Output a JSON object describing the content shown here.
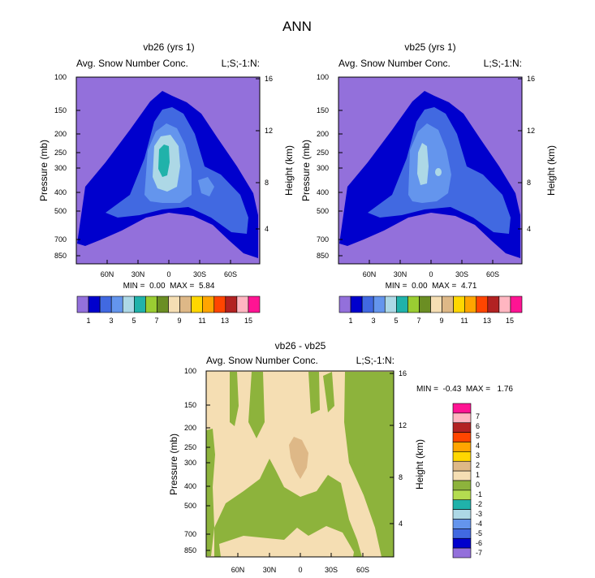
{
  "page": {
    "title": "ANN"
  },
  "chart_data": [
    {
      "type": "heatmap",
      "title": "vb26 (yrs 1)",
      "subtitle_left": "Avg. Snow Number Conc.",
      "subtitle_right": "L;S;-1:N:",
      "ylabel": "Pressure (mb)",
      "ylabel_right": "Height (km)",
      "y_ticks": [
        "100",
        "150",
        "200",
        "250",
        "300",
        "400",
        "500",
        "700",
        "850"
      ],
      "y_right_ticks": [
        "16",
        "12",
        "8",
        "4"
      ],
      "x_ticks": [
        "60N",
        "30N",
        "0",
        "30S",
        "60S"
      ],
      "stats": "MIN =  0.00  MAX =  5.84",
      "colorbar_labels": [
        "1",
        "3",
        "5",
        "7",
        "9",
        "11",
        "13",
        "15"
      ]
    },
    {
      "type": "heatmap",
      "title": "vb25 (yrs 1)",
      "subtitle_left": "Avg. Snow Number Conc.",
      "subtitle_right": "L;S;-1:N:",
      "ylabel": "Pressure (mb)",
      "ylabel_right": "Height (km)",
      "y_ticks": [
        "100",
        "150",
        "200",
        "250",
        "300",
        "400",
        "500",
        "700",
        "850"
      ],
      "y_right_ticks": [
        "16",
        "12",
        "8",
        "4"
      ],
      "x_ticks": [
        "60N",
        "30N",
        "0",
        "30S",
        "60S"
      ],
      "stats": "MIN =  0.00  MAX =  4.71",
      "colorbar_labels": [
        "1",
        "3",
        "5",
        "7",
        "9",
        "11",
        "13",
        "15"
      ]
    },
    {
      "type": "heatmap",
      "title": "vb26 - vb25",
      "subtitle_left": "Avg. Snow Number Conc.",
      "subtitle_right": "L;S;-1:N:",
      "ylabel": "Pressure (mb)",
      "ylabel_right": "Height (km)",
      "y_ticks": [
        "100",
        "150",
        "200",
        "250",
        "300",
        "400",
        "500",
        "700",
        "850"
      ],
      "y_right_ticks": [
        "16",
        "12",
        "8",
        "4"
      ],
      "x_ticks": [
        "60N",
        "30N",
        "0",
        "30S",
        "60S"
      ],
      "stats": "MIN =  -0.43  MAX =   1.76",
      "colorbar_labels": [
        "7",
        "6",
        "5",
        "4",
        "3",
        "2",
        "1",
        "0",
        "-1",
        "-2",
        "-3",
        "-4",
        "-5",
        "-6",
        "-7"
      ]
    }
  ],
  "colors": {
    "seq_scale": [
      "#9370db",
      "#0000cd",
      "#4169e1",
      "#6495ed",
      "#add8e6",
      "#20b2aa",
      "#9acd32",
      "#6b8e23",
      "#f5deb3",
      "#deb887",
      "#ffd700",
      "#ffa500",
      "#ff4500",
      "#b22222",
      "#ffb6c1",
      "#ff1493"
    ],
    "diff_scale": [
      "#ff1493",
      "#ffb6c1",
      "#b22222",
      "#ff4500",
      "#ffa500",
      "#ffd700",
      "#deb887",
      "#f5deb3",
      "#8db33c",
      "#b4dc50",
      "#20b2aa",
      "#add8e6",
      "#6495ed",
      "#4169e1",
      "#0000cd",
      "#9370db"
    ]
  }
}
